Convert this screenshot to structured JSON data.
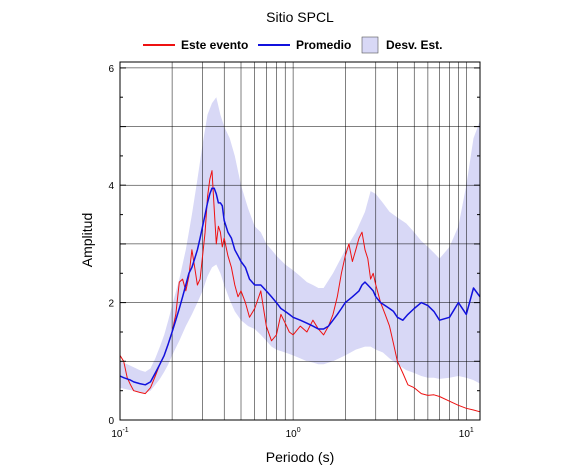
{
  "chart_data": {
    "type": "line",
    "title": "Sitio SPCL",
    "xlabel": "Periodo (s)",
    "ylabel": "Amplitud",
    "x_scale": "log",
    "xlim": [
      0.1,
      12
    ],
    "ylim": [
      0,
      6.1
    ],
    "grid": true,
    "legend": "top",
    "x_ticks": [
      {
        "value": 0.1,
        "base": "10",
        "exp": "-1"
      },
      {
        "value": 1,
        "base": "10",
        "exp": "0"
      },
      {
        "value": 10,
        "base": "10",
        "exp": "1"
      }
    ],
    "y_ticks": [
      0,
      2,
      4,
      6
    ],
    "legend_items": [
      {
        "label": "Este evento",
        "kind": "line",
        "color": "#ee1111"
      },
      {
        "label": "Promedio",
        "kind": "line",
        "color": "#1111dd"
      },
      {
        "label": "Desv. Est.",
        "kind": "band",
        "color": "#d8d8f6"
      }
    ],
    "series": [
      {
        "name": "Este evento",
        "color": "#ee1111",
        "x": [
          0.1,
          0.105,
          0.11,
          0.115,
          0.12,
          0.13,
          0.14,
          0.15,
          0.16,
          0.17,
          0.18,
          0.19,
          0.2,
          0.21,
          0.22,
          0.23,
          0.24,
          0.25,
          0.26,
          0.27,
          0.28,
          0.29,
          0.3,
          0.31,
          0.32,
          0.33,
          0.34,
          0.35,
          0.36,
          0.37,
          0.38,
          0.39,
          0.4,
          0.42,
          0.44,
          0.46,
          0.48,
          0.5,
          0.53,
          0.56,
          0.6,
          0.65,
          0.7,
          0.75,
          0.8,
          0.85,
          0.9,
          0.95,
          1.0,
          1.1,
          1.2,
          1.3,
          1.4,
          1.5,
          1.6,
          1.7,
          1.8,
          1.9,
          2.0,
          2.1,
          2.2,
          2.3,
          2.4,
          2.5,
          2.6,
          2.7,
          2.8,
          2.9,
          3.0,
          3.2,
          3.4,
          3.6,
          3.8,
          4.0,
          4.3,
          4.6,
          5.0,
          5.5,
          6.0,
          6.5,
          7.0,
          8.0,
          9.0,
          10.0,
          11.0,
          12.0
        ],
        "values": [
          1.1,
          1.0,
          0.72,
          0.6,
          0.5,
          0.47,
          0.45,
          0.55,
          0.75,
          0.95,
          1.1,
          1.3,
          1.5,
          1.8,
          2.35,
          2.4,
          2.2,
          2.45,
          2.9,
          2.6,
          2.3,
          2.4,
          2.8,
          3.2,
          3.8,
          4.1,
          4.25,
          3.6,
          3.0,
          3.3,
          3.2,
          2.95,
          3.1,
          2.8,
          2.6,
          2.3,
          2.1,
          2.2,
          2.0,
          1.75,
          1.9,
          2.2,
          1.6,
          1.35,
          1.45,
          1.8,
          1.65,
          1.5,
          1.45,
          1.6,
          1.5,
          1.7,
          1.55,
          1.45,
          1.6,
          1.8,
          2.1,
          2.5,
          2.8,
          3.0,
          2.7,
          2.9,
          3.1,
          3.2,
          2.9,
          2.75,
          2.4,
          2.5,
          2.3,
          2.0,
          1.8,
          1.6,
          1.3,
          1.0,
          0.8,
          0.6,
          0.55,
          0.45,
          0.42,
          0.43,
          0.4,
          0.32,
          0.25,
          0.2,
          0.17,
          0.14
        ]
      },
      {
        "name": "Promedio",
        "color": "#1111dd",
        "x": [
          0.1,
          0.105,
          0.11,
          0.115,
          0.12,
          0.13,
          0.14,
          0.15,
          0.16,
          0.17,
          0.18,
          0.19,
          0.2,
          0.21,
          0.22,
          0.23,
          0.24,
          0.25,
          0.26,
          0.27,
          0.28,
          0.29,
          0.3,
          0.31,
          0.32,
          0.33,
          0.34,
          0.35,
          0.36,
          0.37,
          0.38,
          0.39,
          0.4,
          0.42,
          0.44,
          0.46,
          0.48,
          0.5,
          0.53,
          0.56,
          0.6,
          0.65,
          0.7,
          0.75,
          0.8,
          0.85,
          0.9,
          0.95,
          1.0,
          1.1,
          1.2,
          1.3,
          1.4,
          1.5,
          1.6,
          1.7,
          1.8,
          1.9,
          2.0,
          2.1,
          2.2,
          2.3,
          2.4,
          2.5,
          2.6,
          2.7,
          2.8,
          2.9,
          3.0,
          3.2,
          3.4,
          3.6,
          3.8,
          4.0,
          4.3,
          4.6,
          5.0,
          5.5,
          6.0,
          6.5,
          7.0,
          8.0,
          9.0,
          10.0,
          11.0,
          12.0
        ],
        "values": [
          0.75,
          0.72,
          0.7,
          0.68,
          0.65,
          0.62,
          0.6,
          0.65,
          0.8,
          0.95,
          1.1,
          1.3,
          1.5,
          1.7,
          1.9,
          2.1,
          2.3,
          2.5,
          2.6,
          2.75,
          2.9,
          3.1,
          3.3,
          3.5,
          3.7,
          3.85,
          3.95,
          3.95,
          3.85,
          3.7,
          3.7,
          3.65,
          3.4,
          3.2,
          3.1,
          2.9,
          2.8,
          2.7,
          2.6,
          2.4,
          2.3,
          2.3,
          2.2,
          2.1,
          2.0,
          1.9,
          1.85,
          1.8,
          1.75,
          1.7,
          1.65,
          1.6,
          1.55,
          1.55,
          1.6,
          1.7,
          1.8,
          1.9,
          2.0,
          2.05,
          2.1,
          2.15,
          2.2,
          2.3,
          2.35,
          2.3,
          2.25,
          2.2,
          2.1,
          2.0,
          1.95,
          1.9,
          1.85,
          1.75,
          1.7,
          1.8,
          1.9,
          2.0,
          1.95,
          1.85,
          1.7,
          1.75,
          2.0,
          1.8,
          2.25,
          2.1
        ]
      }
    ],
    "band": {
      "name": "Desv. Est.",
      "color": "#d8d8f6",
      "x": [
        0.1,
        0.11,
        0.12,
        0.13,
        0.14,
        0.15,
        0.16,
        0.17,
        0.18,
        0.19,
        0.2,
        0.22,
        0.24,
        0.26,
        0.28,
        0.3,
        0.32,
        0.34,
        0.36,
        0.38,
        0.4,
        0.43,
        0.46,
        0.5,
        0.55,
        0.6,
        0.65,
        0.7,
        0.75,
        0.8,
        0.9,
        1.0,
        1.1,
        1.2,
        1.3,
        1.4,
        1.5,
        1.7,
        2.0,
        2.3,
        2.6,
        2.8,
        3.0,
        3.3,
        3.6,
        4.0,
        4.5,
        5.0,
        5.5,
        6.0,
        6.5,
        7.0,
        8.0,
        9.0,
        10.0,
        11.0,
        12.0
      ],
      "upper": [
        1.0,
        0.95,
        0.9,
        0.85,
        0.82,
        0.88,
        1.05,
        1.25,
        1.45,
        1.7,
        1.95,
        2.4,
        2.9,
        3.5,
        4.1,
        4.7,
        5.2,
        5.4,
        5.5,
        5.2,
        5.0,
        4.8,
        4.5,
        4.0,
        3.6,
        3.3,
        3.2,
        3.0,
        2.9,
        2.8,
        2.65,
        2.55,
        2.45,
        2.35,
        2.3,
        2.25,
        2.25,
        2.5,
        2.9,
        3.2,
        3.55,
        3.9,
        3.85,
        3.7,
        3.55,
        3.45,
        3.35,
        3.2,
        3.05,
        2.95,
        2.85,
        2.75,
        2.95,
        3.3,
        4.0,
        4.8,
        5.1
      ],
      "lower": [
        0.55,
        0.52,
        0.5,
        0.48,
        0.46,
        0.5,
        0.6,
        0.7,
        0.82,
        0.95,
        1.1,
        1.35,
        1.6,
        1.8,
        2.0,
        2.2,
        2.45,
        2.6,
        2.65,
        2.5,
        2.3,
        2.05,
        1.85,
        1.7,
        1.6,
        1.55,
        1.45,
        1.35,
        1.25,
        1.2,
        1.15,
        1.1,
        1.05,
        1.0,
        0.98,
        0.95,
        0.95,
        1.0,
        1.1,
        1.2,
        1.25,
        1.25,
        1.2,
        1.15,
        1.05,
        0.95,
        0.85,
        0.8,
        0.75,
        0.72,
        0.72,
        0.7,
        0.72,
        0.75,
        0.72,
        0.68,
        0.62
      ]
    }
  }
}
